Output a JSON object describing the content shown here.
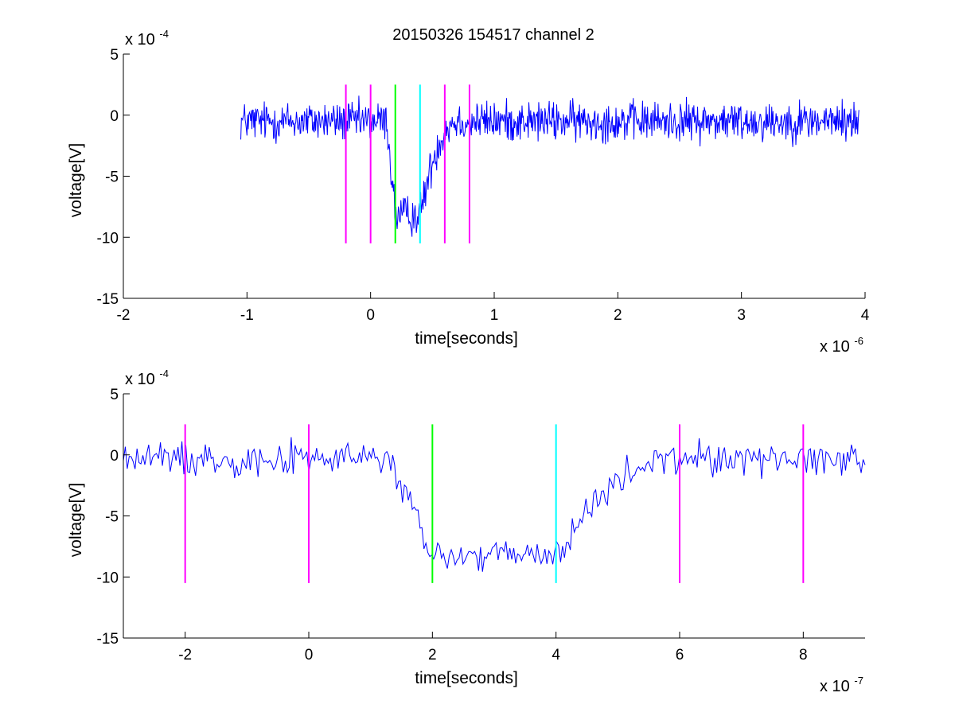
{
  "title": "20150326 154517 channel 2",
  "chart_data": [
    {
      "type": "line",
      "title": "20150326 154517 channel 2",
      "xlabel": "time[seconds]",
      "ylabel": "voltage[V]",
      "x_multiplier": "x 10",
      "x_exponent": "-6",
      "y_multiplier": "x 10",
      "y_exponent": "-4",
      "xlim": [
        -2,
        4
      ],
      "ylim": [
        -15,
        5
      ],
      "xticks": [
        -2,
        -1,
        0,
        1,
        2,
        3,
        4
      ],
      "yticks": [
        -15,
        -10,
        -5,
        0,
        5
      ],
      "xtick_labels": [
        "-2",
        "-1",
        "0",
        "1",
        "2",
        "3",
        "4"
      ],
      "ytick_labels": [
        "-15",
        "-10",
        "-5",
        "0",
        "5"
      ],
      "grid": false,
      "signal": {
        "name": "",
        "color": "#0000ff",
        "x_range": [
          -1.05,
          3.95
        ],
        "baseline": -0.5,
        "noise_amplitude": 1.3,
        "pulse": {
          "start": 0.13,
          "fall_end": 0.2,
          "bottom": -8.2,
          "rise_start": 0.4,
          "recover_end": 0.7
        }
      },
      "markers": [
        {
          "x": -0.2,
          "color": "#ff00ff"
        },
        {
          "x": 0.0,
          "color": "#ff00ff"
        },
        {
          "x": 0.2,
          "color": "#00ff00"
        },
        {
          "x": 0.4,
          "color": "#00ffff"
        },
        {
          "x": 0.6,
          "color": "#ff00ff"
        },
        {
          "x": 0.8,
          "color": "#ff00ff"
        }
      ],
      "marker_range": [
        -10.5,
        2.5
      ]
    },
    {
      "type": "line",
      "xlabel": "time[seconds]",
      "ylabel": "voltage[V]",
      "x_multiplier": "x 10",
      "x_exponent": "-7",
      "y_multiplier": "x 10",
      "y_exponent": "-4",
      "xlim": [
        -3,
        9
      ],
      "ylim": [
        -15,
        5
      ],
      "xticks": [
        -2,
        0,
        2,
        4,
        6,
        8
      ],
      "yticks": [
        -15,
        -10,
        -5,
        0,
        5
      ],
      "xtick_labels": [
        "-2",
        "0",
        "2",
        "4",
        "6",
        "8"
      ],
      "ytick_labels": [
        "-15",
        "-10",
        "-5",
        "0",
        "5"
      ],
      "grid": false,
      "signal": {
        "name": "",
        "color": "#0000ff",
        "x_range": [
          -3,
          9
        ],
        "baseline": -0.3,
        "noise_amplitude": 1.1,
        "pulse": {
          "start": 1.3,
          "fall_end": 2.0,
          "bottom": -8.3,
          "rise_start": 4.0,
          "recover_end": 6.0
        }
      },
      "markers": [
        {
          "x": -2,
          "color": "#ff00ff"
        },
        {
          "x": 0,
          "color": "#ff00ff"
        },
        {
          "x": 2,
          "color": "#00ff00"
        },
        {
          "x": 4,
          "color": "#00ffff"
        },
        {
          "x": 6,
          "color": "#ff00ff"
        },
        {
          "x": 8,
          "color": "#ff00ff"
        }
      ],
      "marker_range": [
        -10.5,
        2.5
      ]
    }
  ]
}
